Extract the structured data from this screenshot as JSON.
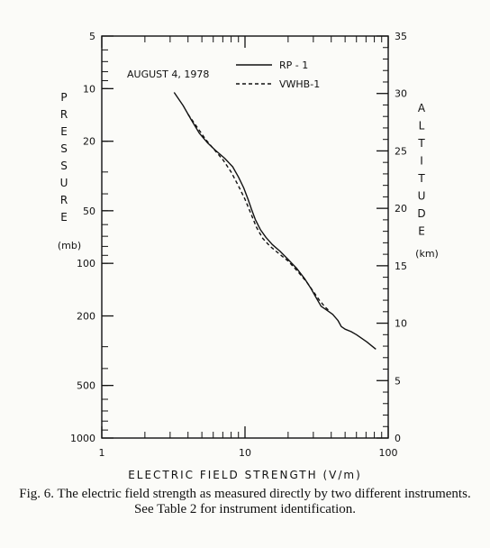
{
  "chart_data": {
    "type": "line",
    "annotation": "AUGUST 4, 1978",
    "xlabel": "ELECTRIC FIELD STRENGTH (V/m)",
    "x_scale": "log",
    "xlim": [
      1,
      100
    ],
    "x_ticks": [
      "1",
      "10",
      "100"
    ],
    "ylabel_left": "PRESSURE",
    "ylabel_left_unit": "(mb)",
    "y_left_scale": "log",
    "y_left_inverted": true,
    "ylim_left": [
      1000,
      5
    ],
    "y_left_ticks": [
      "5",
      "10",
      "20",
      "50",
      "100",
      "200",
      "500",
      "1000"
    ],
    "ylabel_right": "ALTITUDE",
    "ylabel_right_unit": "(km)",
    "ylim_right": [
      0,
      35
    ],
    "y_right_ticks": [
      "0",
      "5",
      "10",
      "15",
      "20",
      "25",
      "30",
      "35"
    ],
    "legend_position": "top-right",
    "series": [
      {
        "name": "RP - 1",
        "style": "solid",
        "points": [
          [
            3.2,
            10.5
          ],
          [
            3.7,
            12.5
          ],
          [
            4.2,
            15
          ],
          [
            4.8,
            18
          ],
          [
            5.5,
            20.5
          ],
          [
            6.2,
            22.5
          ],
          [
            7.2,
            25
          ],
          [
            8.2,
            28
          ],
          [
            9.0,
            32
          ],
          [
            9.8,
            37
          ],
          [
            10.5,
            43
          ],
          [
            11.1,
            49
          ],
          [
            11.8,
            56
          ],
          [
            12.8,
            64
          ],
          [
            14.0,
            71
          ],
          [
            15.5,
            78
          ],
          [
            17.5,
            85
          ],
          [
            20.0,
            95
          ],
          [
            23.0,
            107
          ],
          [
            26.0,
            122
          ],
          [
            29.0,
            140
          ],
          [
            31.5,
            158
          ],
          [
            34.0,
            176
          ],
          [
            37.5,
            186
          ],
          [
            41.0,
            196
          ],
          [
            44.5,
            212
          ],
          [
            47.0,
            230
          ],
          [
            50.0,
            238
          ],
          [
            55.0,
            246
          ],
          [
            60.0,
            256
          ],
          [
            65.0,
            268
          ],
          [
            71.0,
            282
          ],
          [
            76.0,
            295
          ],
          [
            82.0,
            310
          ]
        ]
      },
      {
        "name": "VWHB-1",
        "style": "dashed",
        "points": [
          [
            4.0,
            14
          ],
          [
            4.6,
            16.5
          ],
          [
            5.3,
            19.5
          ],
          [
            6.0,
            22
          ],
          [
            7.0,
            25.5
          ],
          [
            8.0,
            30
          ],
          [
            9.0,
            36
          ],
          [
            10.0,
            43
          ],
          [
            11.0,
            52
          ],
          [
            12.0,
            62
          ],
          [
            13.3,
            72
          ],
          [
            15.0,
            80
          ],
          [
            17.0,
            87
          ],
          [
            20.0,
            97
          ],
          [
            23.5,
            112
          ],
          [
            27.0,
            128
          ],
          [
            30.0,
            145
          ],
          [
            33.0,
            162
          ],
          [
            36.0,
            177
          ],
          [
            39.0,
            188
          ]
        ]
      }
    ]
  },
  "caption": "Fig. 6.  The electric field strength as measured directly by two different instruments. See Table 2 for instrument identification.",
  "colors": {
    "ink": "#111111",
    "paper": "#fbfbf8"
  }
}
